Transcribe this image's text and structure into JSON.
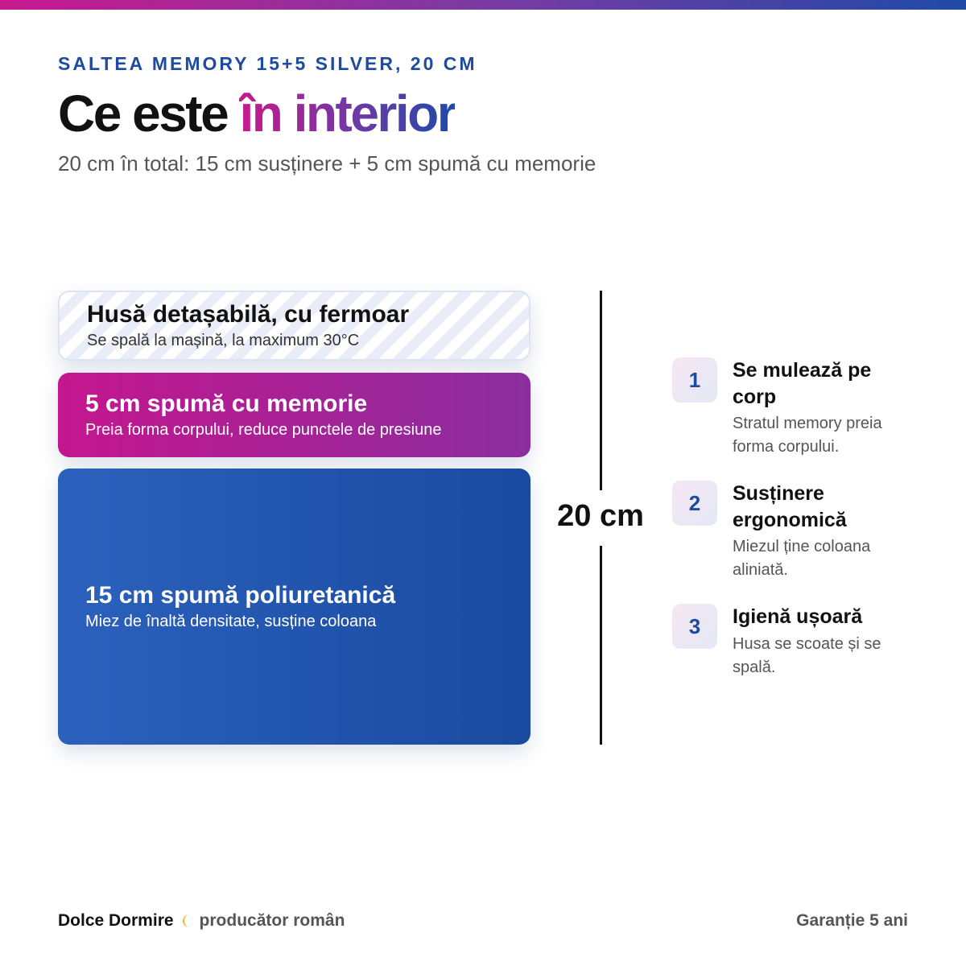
{
  "header": {
    "eyebrow": "SALTEA MEMORY 15+5 SILVER, 20 CM",
    "title": {
      "plain": "Ce este",
      "highlight": "în interior"
    },
    "subtitle": "20 cm în total: 15 cm susținere + 5 cm spumă cu memorie"
  },
  "layers": [
    {
      "title": "Husă detașabilă, cu fermoar",
      "description": "Se spală la mașină, la maximum 30°C"
    },
    {
      "title": "5 cm spumă cu memorie",
      "description": "Preia forma corpului, reduce punctele de presiune"
    },
    {
      "title": "15 cm spumă poliuretanică",
      "description": "Miez de înaltă densitate, susține coloana"
    }
  ],
  "height_label": "20 cm",
  "features": [
    {
      "number": "1",
      "title": "Se mulează pe corp",
      "description": "Stratul memory preia forma corpului."
    },
    {
      "number": "2",
      "title": "Susținere ergonomică",
      "description": "Miezul ține coloana aliniată."
    },
    {
      "number": "3",
      "title": "Igienă ușoară",
      "description": "Husa se scoate și se spală."
    }
  ],
  "footer": {
    "brand": "Dolce Dormire",
    "tagline": "producător român",
    "warranty": "Garanție 5 ani"
  }
}
